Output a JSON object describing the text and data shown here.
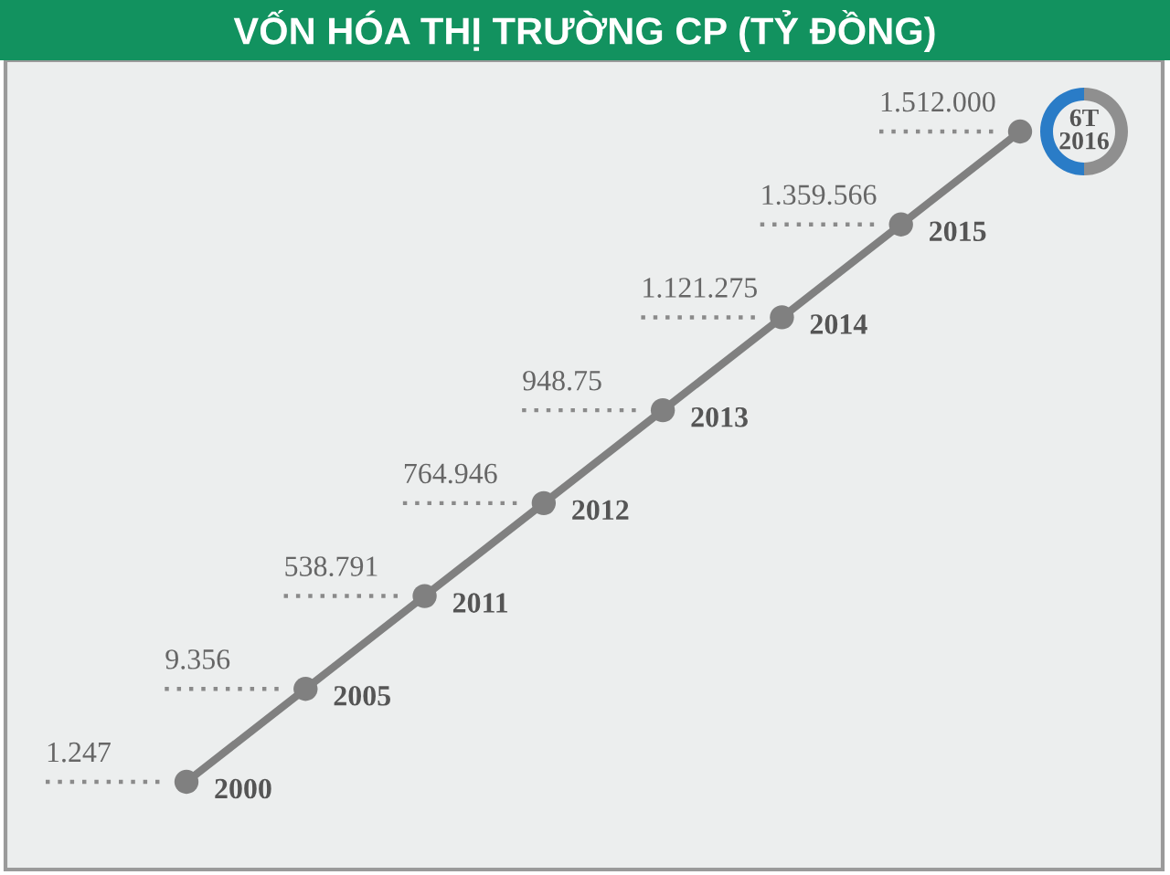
{
  "chart_data": {
    "type": "other",
    "title": "VỐN HÓA THỊ TRƯỜNG CP (TỶ ĐỒNG)",
    "categories": [
      "2000",
      "2005",
      "2011",
      "2012",
      "2013",
      "2014",
      "2015",
      "6T\n2016"
    ],
    "values": [
      1247,
      9356,
      538791,
      764946,
      948.75,
      1121275,
      1359566,
      1512000
    ],
    "value_labels": [
      "1.247",
      "9.356",
      "538.791",
      "764.946",
      "948.75",
      "1.121.275",
      "1.359.566",
      "1.512.000"
    ],
    "color": "#808080"
  }
}
